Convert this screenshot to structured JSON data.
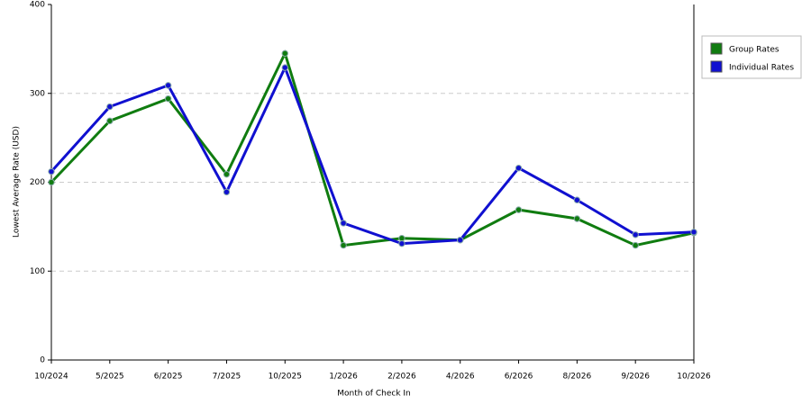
{
  "chart_data": {
    "type": "line",
    "x_label": "Month of Check In",
    "y_label": "Lowest Average Rate (USD)",
    "categories": [
      "10/2024",
      "5/2025",
      "6/2025",
      "7/2025",
      "10/2025",
      "1/2026",
      "2/2026",
      "4/2026",
      "6/2026",
      "8/2026",
      "9/2026",
      "10/2026"
    ],
    "series": [
      {
        "name": "Group Rates",
        "color": "#107c10",
        "values": [
          200,
          269,
          294,
          209,
          345,
          129,
          137,
          135,
          169,
          159,
          129,
          143
        ]
      },
      {
        "name": "Individual Rates",
        "color": "#1010d0",
        "values": [
          212,
          285,
          309,
          189,
          329,
          154,
          131,
          135,
          216,
          180,
          141,
          144
        ]
      }
    ],
    "ylim": [
      0,
      400
    ],
    "yticks": [
      0,
      100,
      200,
      300,
      400
    ],
    "grid": true,
    "legend": "right"
  }
}
